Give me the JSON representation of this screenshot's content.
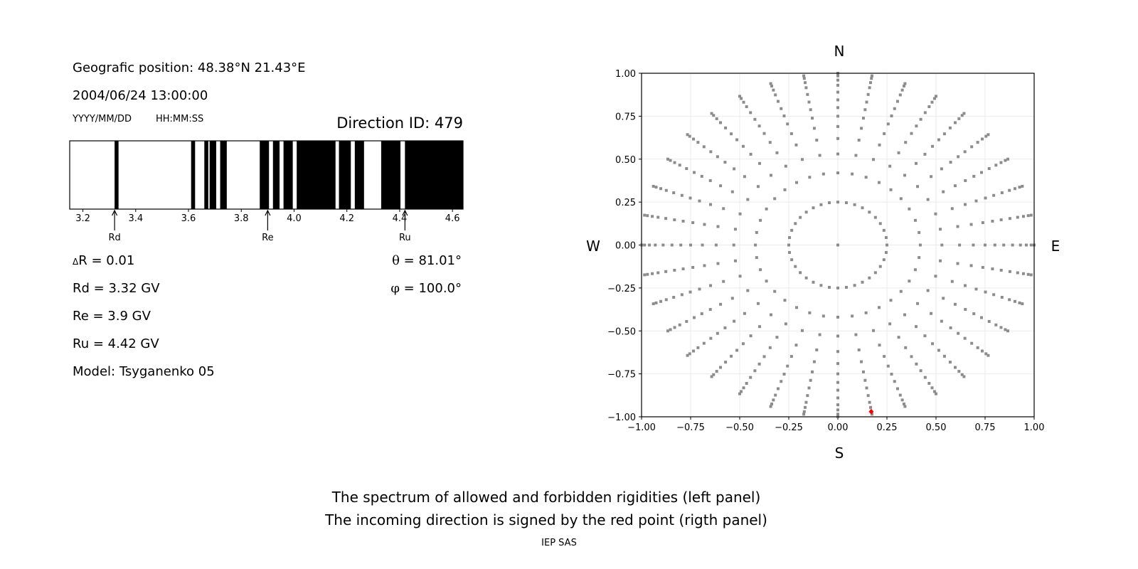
{
  "left_panel": {
    "geo_position": "Geografic position: 48.38°N 21.43°E",
    "datetime": "2004/06/24 13:00:00",
    "date_format_label": "YYYY/MM/DD",
    "time_format_label": "HH:MM:SS",
    "direction_id": "Direction ID: 479",
    "delta_r_symbol": "Δ",
    "delta_r": "R = 0.01",
    "rd": "Rd = 3.32 GV",
    "re": "Re = 3.9 GV",
    "ru": "Ru = 4.42 GV",
    "model": "Model: Tsyganenko 05",
    "theta_symbol": "θ",
    "theta": " = 81.01°",
    "phi_symbol": "φ",
    "phi": " = 100.0°"
  },
  "compass": {
    "n": "N",
    "s": "S",
    "w": "W",
    "e": "E"
  },
  "caption": {
    "line1": "The spectrum of allowed and forbidden rigidities (left panel)",
    "line2": "The incoming direction is signed by the red point (rigth panel)",
    "credit": "IEP SAS"
  },
  "chart_data": [
    {
      "type": "bar",
      "description_kind": "rigidity spectrum (black = forbidden, white = allowed)",
      "xlim": [
        3.15,
        4.64
      ],
      "xticks": [
        "3.2",
        "3.4",
        "3.6",
        "3.8",
        "4.0",
        "4.2",
        "4.4",
        "4.6"
      ],
      "forbidden_bands": [
        [
          3.32,
          3.335
        ],
        [
          3.61,
          3.625
        ],
        [
          3.66,
          3.675
        ],
        [
          3.68,
          3.705
        ],
        [
          3.72,
          3.745
        ],
        [
          3.87,
          3.905
        ],
        [
          3.92,
          3.945
        ],
        [
          3.96,
          3.995
        ],
        [
          4.01,
          4.157
        ],
        [
          4.17,
          4.215
        ],
        [
          4.23,
          4.265
        ],
        [
          4.33,
          4.403
        ],
        [
          4.42,
          4.64
        ]
      ],
      "markers": [
        {
          "label": "Rd",
          "value": 3.32
        },
        {
          "label": "Re",
          "value": 3.9
        },
        {
          "label": "Ru",
          "value": 4.42
        }
      ],
      "colors": {
        "forbidden": "#000000",
        "allowed": "#ffffff"
      }
    },
    {
      "type": "scatter",
      "xlim": [
        -1.0,
        1.0
      ],
      "ylim": [
        -1.0,
        1.0
      ],
      "xticks": [
        "−1.00",
        "−0.75",
        "−0.50",
        "−0.25",
        "0.00",
        "0.25",
        "0.50",
        "0.75",
        "1.00"
      ],
      "yticks": [
        "1.00",
        "0.75",
        "0.50",
        "0.25",
        "0.00",
        "−0.25",
        "−0.50",
        "−0.75",
        "−1.00"
      ],
      "grid": true,
      "direction_grid": {
        "azimuth_step_deg": 10,
        "radii": [
          0.25,
          0.42,
          0.53,
          0.62,
          0.69,
          0.75,
          0.8,
          0.845,
          0.89,
          0.93,
          0.96,
          0.985,
          1.0
        ],
        "center_point": [
          0.0,
          0.0
        ],
        "color": "#8c8c8c"
      },
      "highlight_point": {
        "x": 0.17,
        "y": -0.97,
        "color": "#ff0000"
      }
    }
  ]
}
